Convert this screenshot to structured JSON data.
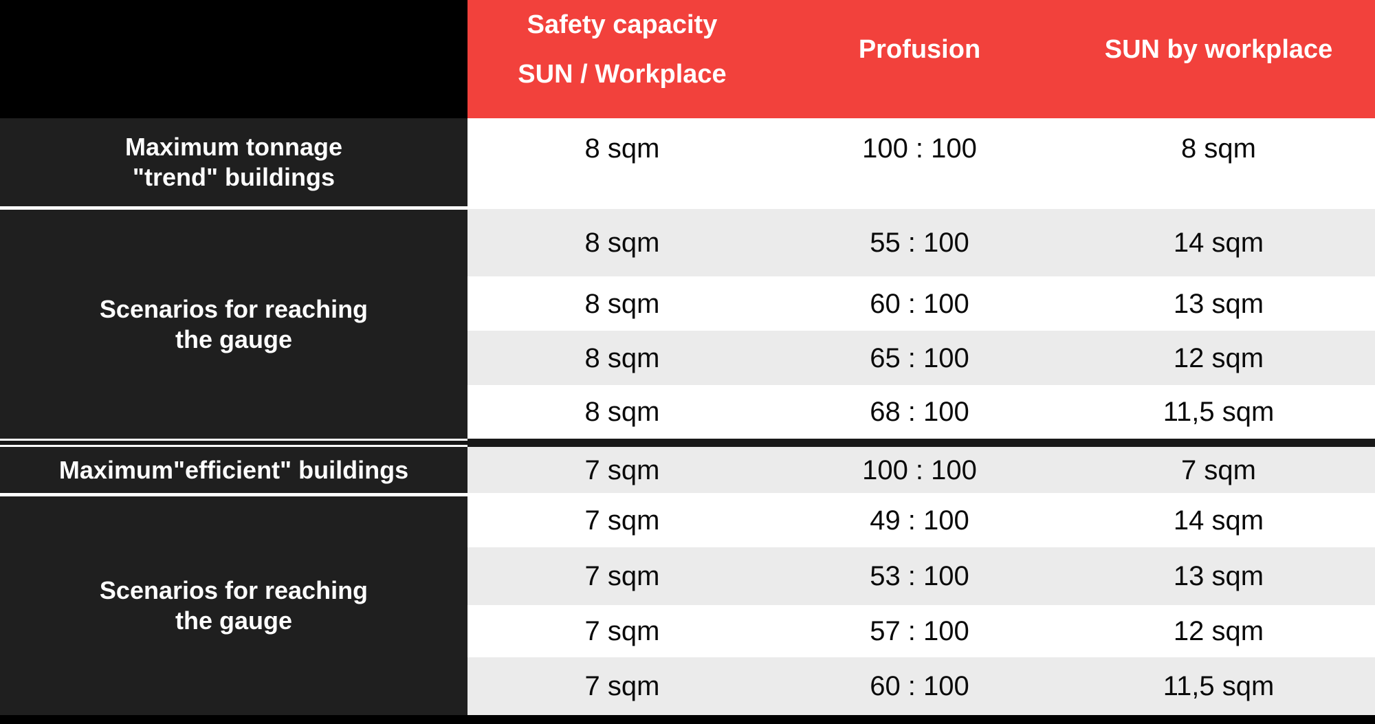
{
  "colors": {
    "header_red": "#f2413c",
    "label_dark": "#1f1f1f",
    "row_alt_gray": "#ebebeb",
    "row_white": "#ffffff",
    "frame_black": "#000000",
    "text_dark": "#0a0a0a",
    "text_white": "#ffffff"
  },
  "header": {
    "safety_line1": "Safety capacity",
    "safety_line2": "SUN / Workplace",
    "profusion": "Profusion",
    "sun_by_workplace": "SUN by workplace"
  },
  "row_groups": [
    "Maximum tonnage\n\"trend\" buildings",
    "Scenarios for reaching\nthe gauge",
    "Maximum\"efficient\" buildings",
    "Scenarios for reaching\nthe gauge"
  ],
  "rows": [
    {
      "safety": "8 sqm",
      "profusion": "100 : 100",
      "sun": "8 sqm"
    },
    {
      "safety": "8 sqm",
      "profusion": "55 : 100",
      "sun": "14 sqm"
    },
    {
      "safety": "8 sqm",
      "profusion": "60 : 100",
      "sun": "13 sqm"
    },
    {
      "safety": "8 sqm",
      "profusion": "65 : 100",
      "sun": "12 sqm"
    },
    {
      "safety": "8 sqm",
      "profusion": "68 : 100",
      "sun": "11,5 sqm"
    },
    {
      "safety": "7 sqm",
      "profusion": "100 : 100",
      "sun": "7 sqm"
    },
    {
      "safety": "7 sqm",
      "profusion": "49 : 100",
      "sun": "14 sqm"
    },
    {
      "safety": "7 sqm",
      "profusion": "53 : 100",
      "sun": "13 sqm"
    },
    {
      "safety": "7 sqm",
      "profusion": "57 : 100",
      "sun": "12 sqm"
    },
    {
      "safety": "7 sqm",
      "profusion": "60 : 100",
      "sun": "11,5 sqm"
    }
  ],
  "chart_data": {
    "type": "table",
    "columns": [
      "Safety capacity SUN / Workplace",
      "Profusion",
      "SUN by workplace"
    ],
    "row_group_labels": [
      "Maximum tonnage \"trend\" buildings",
      "Scenarios for reaching the gauge",
      "Maximum\"efficient\" buildings",
      "Scenarios for reaching the gauge"
    ],
    "rows": [
      [
        "8 sqm",
        "100 : 100",
        "8 sqm"
      ],
      [
        "8 sqm",
        "55 : 100",
        "14 sqm"
      ],
      [
        "8 sqm",
        "60 : 100",
        "13 sqm"
      ],
      [
        "8 sqm",
        "65 : 100",
        "12 sqm"
      ],
      [
        "8 sqm",
        "68 : 100",
        "11,5 sqm"
      ],
      [
        "7 sqm",
        "100 : 100",
        "7 sqm"
      ],
      [
        "7 sqm",
        "49 : 100",
        "14 sqm"
      ],
      [
        "7 sqm",
        "53 : 100",
        "13 sqm"
      ],
      [
        "7 sqm",
        "57 : 100",
        "12 sqm"
      ],
      [
        "7 sqm",
        "60 : 100",
        "11,5 sqm"
      ]
    ]
  }
}
